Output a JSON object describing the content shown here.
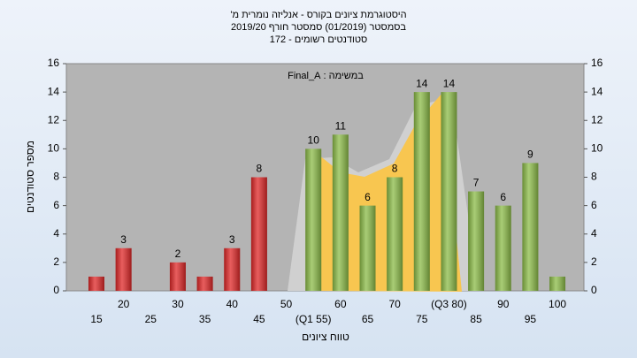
{
  "chart_data": {
    "type": "bar",
    "title": [
      "היסטוגרמת ציונים בקורס - אנליזה נומרית מ'",
      "בסמסטר (01/2019) סמסטר חורף 2019/20",
      "סטודנטים רשומים - 172"
    ],
    "annotation": "במשימה : Final_A",
    "ylabel": "מספר סטודנטים",
    "xlabel": "טווח ציונים",
    "categories": [
      "15",
      "20",
      "25",
      "30",
      "35",
      "40",
      "45",
      "50",
      "(Q1 55)",
      "60",
      "65",
      "70",
      "75",
      "(Q3 80)",
      "85",
      "90",
      "95",
      "100"
    ],
    "values": [
      1,
      3,
      0,
      2,
      1,
      3,
      8,
      0,
      10,
      11,
      6,
      8,
      14,
      14,
      7,
      6,
      9,
      1
    ],
    "value_labels": [
      null,
      3,
      null,
      2,
      null,
      3,
      8,
      null,
      10,
      11,
      6,
      8,
      14,
      14,
      7,
      6,
      9,
      null
    ],
    "colors": [
      "#e02828",
      "#e02828",
      "#e02828",
      "#e02828",
      "#e02828",
      "#e02828",
      "#e02828",
      "#e02828",
      "#8cbc48",
      "#8cbc48",
      "#8cbc48",
      "#8cbc48",
      "#8cbc48",
      "#8cbc48",
      "#8cbc48",
      "#8cbc48",
      "#8cbc48",
      "#8cbc48"
    ],
    "ylim": [
      0,
      16
    ],
    "yticks": [
      0,
      2,
      4,
      6,
      8,
      10,
      12,
      14,
      16
    ],
    "y2lim": [
      0,
      16
    ],
    "y2ticks": [
      0,
      2,
      4,
      6,
      8,
      10,
      12,
      14,
      16
    ],
    "grid": false
  }
}
